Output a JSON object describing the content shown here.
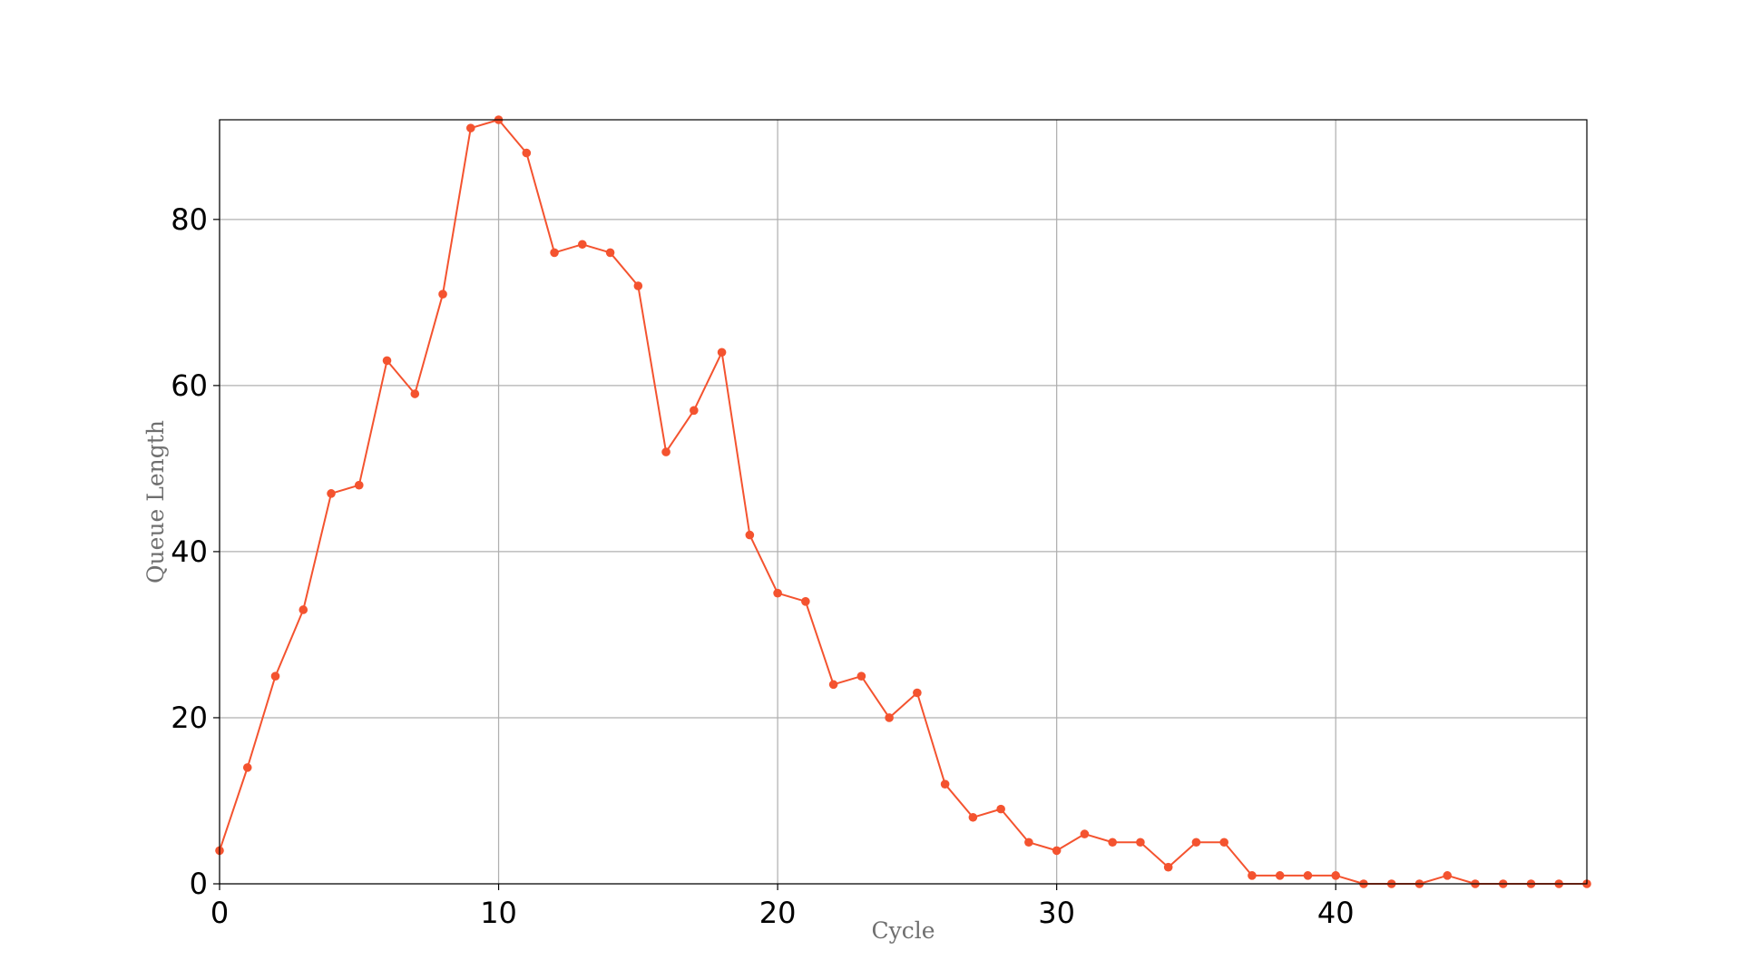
{
  "chart_data": {
    "type": "line",
    "title": "",
    "xlabel": "Cycle",
    "ylabel": "Queue Length",
    "xlim": [
      0,
      49
    ],
    "ylim": [
      0,
      92
    ],
    "x_ticks": [
      0,
      10,
      20,
      30,
      40
    ],
    "y_ticks": [
      0,
      20,
      40,
      60,
      80
    ],
    "grid": true,
    "colors": {
      "series": "#f4532f"
    },
    "series": [
      {
        "x": [
          0,
          1,
          2,
          3,
          4,
          5,
          6,
          7,
          8,
          9,
          10,
          11,
          12,
          13,
          14,
          15,
          16,
          17,
          18,
          19,
          20,
          21,
          22,
          23,
          24,
          25,
          26,
          27,
          28,
          29,
          30,
          31,
          32,
          33,
          34,
          35,
          36,
          37,
          38,
          39,
          40,
          41,
          42,
          43,
          44,
          45,
          46,
          47,
          48,
          49
        ],
        "values": [
          4,
          14,
          25,
          33,
          47,
          48,
          63,
          59,
          71,
          91,
          92,
          88,
          76,
          77,
          76,
          72,
          52,
          57,
          64,
          42,
          35,
          34,
          24,
          25,
          20,
          23,
          12,
          8,
          9,
          5,
          4,
          6,
          5,
          5,
          2,
          5,
          5,
          1,
          1,
          1,
          1,
          0,
          0,
          0,
          1,
          0,
          0,
          0,
          0,
          0
        ]
      }
    ]
  }
}
